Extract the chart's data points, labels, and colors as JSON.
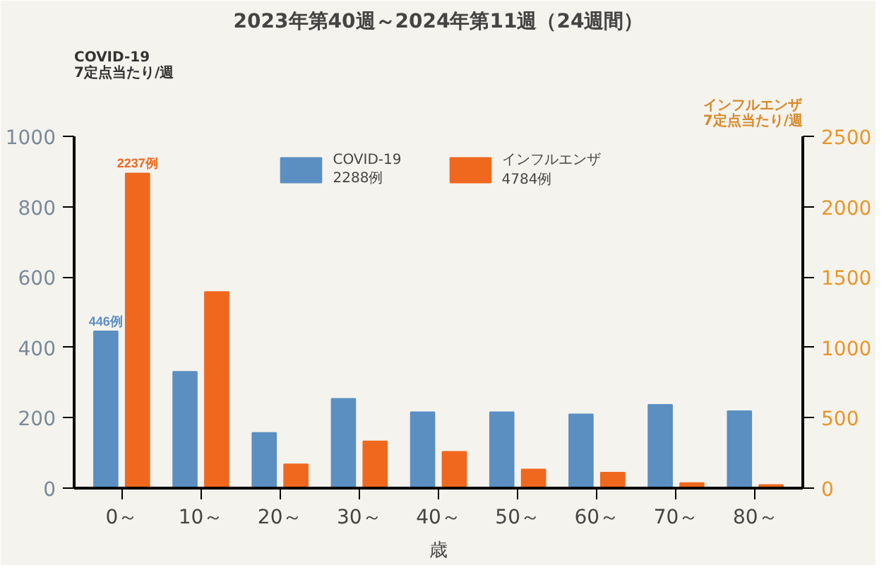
{
  "chart_data": {
    "type": "bar",
    "title": "2023年第40週～2024年第11週（24週間）",
    "ylabel": "COVID-19\n7定点当たり/週",
    "y2label": "インフルエンザ\n7定点当たり/週",
    "xlabel": "歳",
    "categories": [
      "0～",
      "10～",
      "20～",
      "30～",
      "40～",
      "50～",
      "60～",
      "70～",
      "80～"
    ],
    "series": [
      {
        "name": "COVID-19\n2288例",
        "color": "#5b8fc2",
        "values": [
          446,
          331,
          157,
          254,
          216,
          216,
          210,
          237,
          219
        ],
        "value_labels": [
          "446例",
          null,
          null,
          null,
          null,
          null,
          null,
          null,
          null
        ]
      },
      {
        "name": "インフルエンザ\n4784例",
        "color": "#f0681e",
        "axis": "y2",
        "values": [
          2237,
          1394,
          170,
          332,
          258,
          133,
          111,
          37,
          22
        ],
        "value_labels": [
          "2237例",
          null,
          null,
          null,
          null,
          null,
          null,
          null,
          null
        ]
      }
    ],
    "ylim": [
      0,
      1000
    ],
    "yticks": [
      0,
      200,
      400,
      600,
      800,
      1000
    ],
    "y2lim": [
      0,
      2500
    ],
    "y2ticks": [
      0,
      500,
      1000,
      1500,
      2000,
      2500
    ],
    "grid": false,
    "legend": "top"
  }
}
